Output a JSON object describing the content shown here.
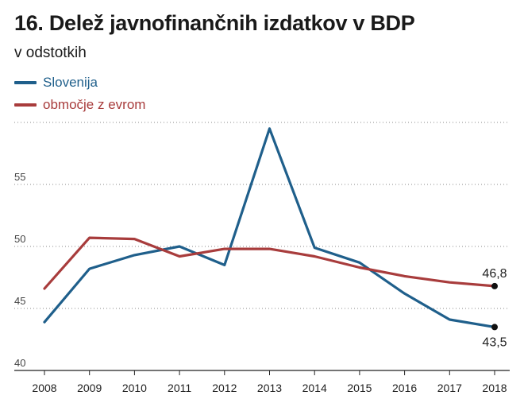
{
  "header": {
    "title": "16. Delež javnofinančnih izdatkov v BDP",
    "subtitle": "v odstotkih"
  },
  "chart_data": {
    "type": "line",
    "title": "16. Delež javnofinančnih izdatkov v BDP",
    "subtitle": "v odstotkih",
    "xlabel": "",
    "ylabel": "",
    "x": [
      "2008",
      "2009",
      "2010",
      "2011",
      "2012",
      "2013",
      "2014",
      "2015",
      "2016",
      "2017",
      "2018"
    ],
    "ylim": [
      40,
      60
    ],
    "yticks": [
      40,
      45,
      50,
      55
    ],
    "gridlines": true,
    "legend_position": "top-left",
    "series": [
      {
        "name": "Slovenija",
        "color": "#1f5f8b",
        "values": [
          43.9,
          48.2,
          49.3,
          50.0,
          48.5,
          59.5,
          49.9,
          48.7,
          46.2,
          44.1,
          43.5
        ],
        "end_label": "43,5"
      },
      {
        "name": "območje z evrom",
        "color": "#a83c3c",
        "values": [
          46.6,
          50.7,
          50.6,
          49.2,
          49.8,
          49.8,
          49.2,
          48.3,
          47.6,
          47.1,
          46.8
        ],
        "end_label": "46,8"
      }
    ]
  }
}
